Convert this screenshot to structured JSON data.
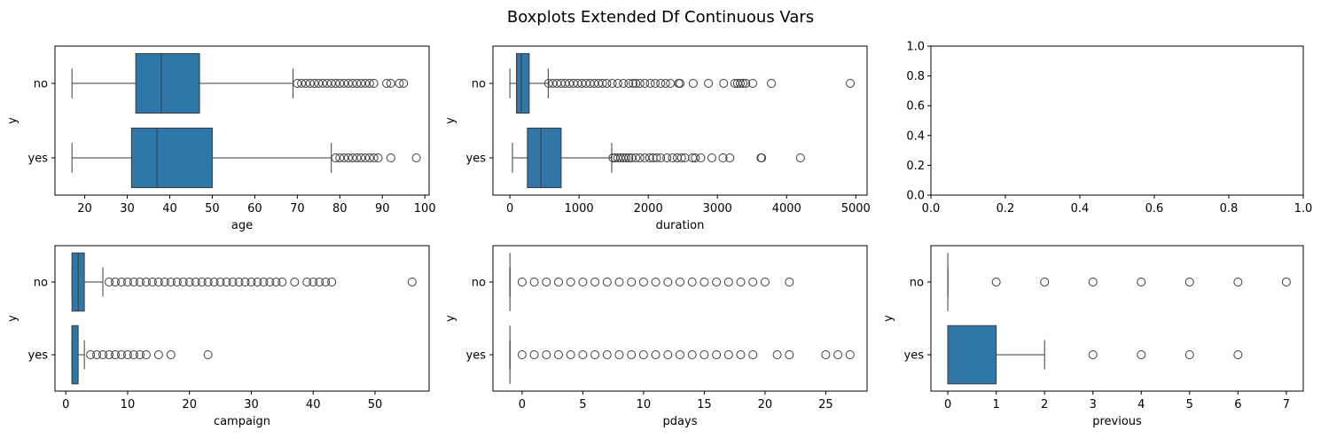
{
  "figure_title": "Boxplots Extended Df Continuous Vars",
  "colors": {
    "box": "#2f76a9",
    "line": "#3b3b3b",
    "flier": "#3b3b3b",
    "axes": "#000000"
  },
  "chart_data": [
    {
      "type": "boxplot",
      "xlabel": "age",
      "ylabel": "y",
      "categories": [
        "no",
        "yes"
      ],
      "xlim": [
        13,
        101
      ],
      "xticks": [
        20,
        30,
        40,
        50,
        60,
        70,
        80,
        90,
        100
      ],
      "boxes": [
        {
          "category": "no",
          "whisker_low": 17,
          "q1": 32,
          "median": 38,
          "q3": 47,
          "whisker_high": 69,
          "outliers": [
            70,
            71,
            72,
            73,
            74,
            75,
            76,
            77,
            78,
            79,
            80,
            81,
            82,
            83,
            84,
            85,
            86,
            87,
            88,
            91,
            92,
            94,
            95
          ]
        },
        {
          "category": "yes",
          "whisker_low": 17,
          "q1": 31,
          "median": 37,
          "q3": 50,
          "whisker_high": 78,
          "outliers": [
            79,
            80,
            81,
            82,
            83,
            84,
            85,
            86,
            87,
            88,
            89,
            92,
            98
          ]
        }
      ]
    },
    {
      "type": "boxplot",
      "xlabel": "duration",
      "ylabel": "y",
      "categories": [
        "no",
        "yes"
      ],
      "xlim": [
        -245,
        5163
      ],
      "xticks": [
        0,
        1000,
        2000,
        3000,
        4000,
        5000
      ],
      "boxes": [
        {
          "category": "no",
          "whisker_low": 0,
          "q1": 95,
          "median": 164,
          "q3": 279,
          "whisker_high": 554,
          "outliers": [
            560,
            620,
            680,
            740,
            800,
            860,
            920,
            980,
            1040,
            1100,
            1160,
            1220,
            1280,
            1340,
            1400,
            1480,
            1560,
            1640,
            1720,
            1780,
            1820,
            1880,
            1950,
            2030,
            2100,
            2180,
            2250,
            2320,
            2440,
            2460,
            2650,
            2870,
            3090,
            3250,
            3290,
            3330,
            3370,
            3410,
            3510,
            3780,
            4920
          ]
        },
        {
          "category": "yes",
          "whisker_low": 37,
          "q1": 253,
          "median": 449,
          "q3": 741,
          "whisker_high": 1472,
          "outliers": [
            1490,
            1520,
            1560,
            1600,
            1640,
            1680,
            1720,
            1760,
            1820,
            1880,
            1950,
            2020,
            2070,
            2120,
            2180,
            2270,
            2350,
            2420,
            2480,
            2530,
            2640,
            2680,
            2760,
            2920,
            3080,
            3180,
            3630,
            3640,
            4200
          ]
        }
      ]
    },
    {
      "type": "empty",
      "xlabel": "",
      "ylabel": "",
      "xlim": [
        0,
        1
      ],
      "ylim": [
        0,
        1
      ],
      "xticks": [
        "0.0",
        "0.2",
        "0.4",
        "0.6",
        "0.8",
        "1.0"
      ],
      "yticks": [
        "0.0",
        "0.2",
        "0.4",
        "0.6",
        "0.8",
        "1.0"
      ]
    },
    {
      "type": "boxplot",
      "xlabel": "campaign",
      "ylabel": "y",
      "categories": [
        "no",
        "yes"
      ],
      "xlim": [
        -1.75,
        58.75
      ],
      "xticks": [
        0,
        10,
        20,
        30,
        40,
        50
      ],
      "boxes": [
        {
          "category": "no",
          "whisker_low": 1,
          "q1": 1,
          "median": 2,
          "q3": 3,
          "whisker_high": 6,
          "outliers": [
            7,
            8,
            9,
            10,
            11,
            12,
            13,
            14,
            15,
            16,
            17,
            18,
            19,
            20,
            21,
            22,
            23,
            24,
            25,
            26,
            27,
            28,
            29,
            30,
            31,
            32,
            33,
            34,
            35,
            37,
            39,
            40,
            41,
            42,
            43,
            56
          ]
        },
        {
          "category": "yes",
          "whisker_low": 1,
          "q1": 1,
          "median": 1,
          "q3": 2,
          "whisker_high": 3,
          "outliers": [
            4,
            5,
            6,
            7,
            8,
            9,
            10,
            11,
            12,
            13,
            15,
            17,
            23
          ]
        }
      ]
    },
    {
      "type": "boxplot",
      "xlabel": "pdays",
      "ylabel": "y",
      "categories": [
        "no",
        "yes"
      ],
      "xlim": [
        -2.4,
        28.4
      ],
      "xticks": [
        0,
        5,
        10,
        15,
        20,
        25
      ],
      "boxes": [
        {
          "category": "no",
          "whisker_low": -1,
          "q1": -1,
          "median": -1,
          "q3": -1,
          "whisker_high": -1,
          "outliers": [
            0,
            1,
            2,
            3,
            4,
            5,
            6,
            7,
            8,
            9,
            10,
            11,
            12,
            13,
            14,
            15,
            16,
            17,
            18,
            19,
            20,
            22
          ]
        },
        {
          "category": "yes",
          "whisker_low": -1,
          "q1": -1,
          "median": -1,
          "q3": -1,
          "whisker_high": -1,
          "outliers": [
            0,
            1,
            2,
            3,
            4,
            5,
            6,
            7,
            8,
            9,
            10,
            11,
            12,
            13,
            14,
            15,
            16,
            17,
            18,
            19,
            21,
            22,
            25,
            26,
            27
          ]
        }
      ]
    },
    {
      "type": "boxplot",
      "xlabel": "previous",
      "ylabel": "y",
      "categories": [
        "no",
        "yes"
      ],
      "xlim": [
        -0.35,
        7.35
      ],
      "xticks": [
        0,
        1,
        2,
        3,
        4,
        5,
        6,
        7
      ],
      "boxes": [
        {
          "category": "no",
          "whisker_low": 0,
          "q1": 0,
          "median": 0,
          "q3": 0,
          "whisker_high": 0,
          "outliers": [
            1,
            2,
            3,
            4,
            5,
            6,
            7
          ]
        },
        {
          "category": "yes",
          "whisker_low": 0,
          "q1": 0,
          "median": 0,
          "q3": 1,
          "whisker_high": 2,
          "outliers": [
            3,
            4,
            5,
            6
          ]
        }
      ]
    }
  ]
}
